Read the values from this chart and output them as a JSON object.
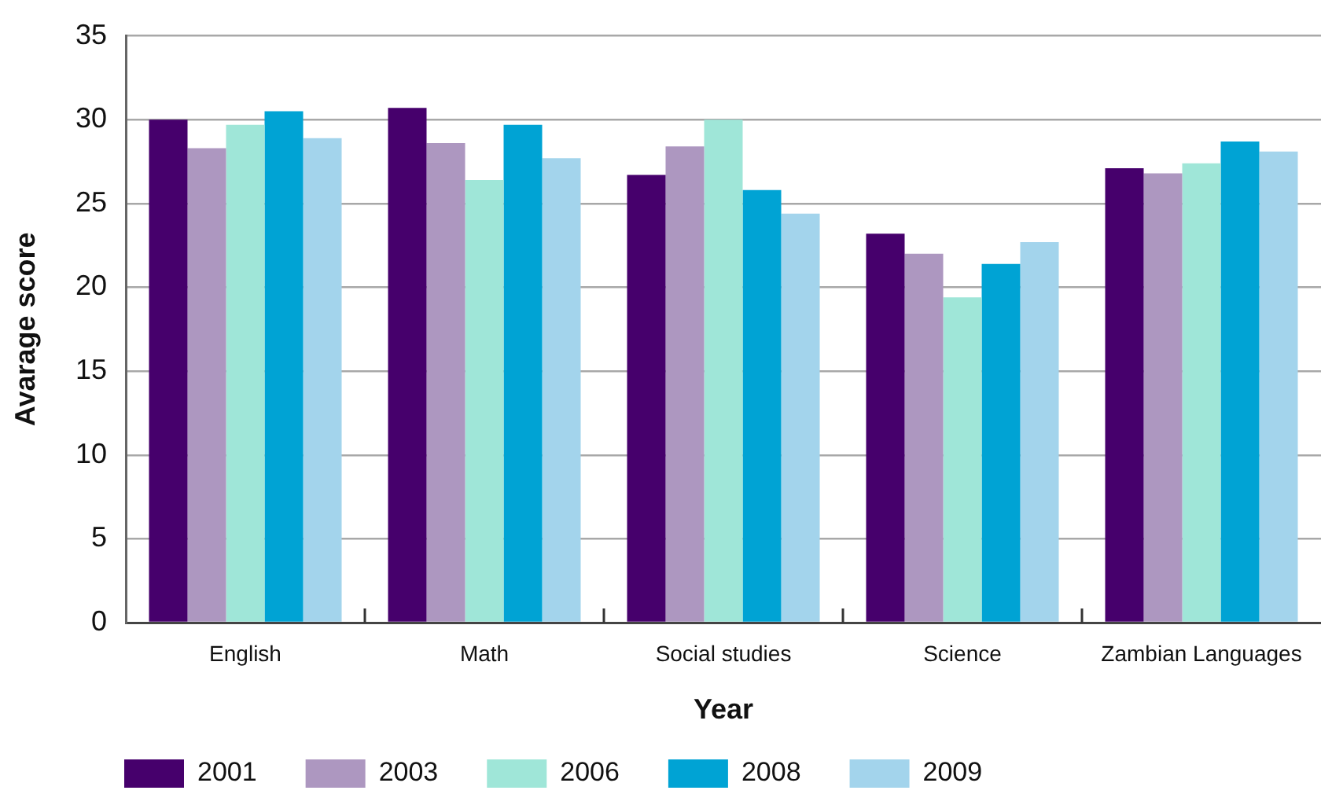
{
  "chart_data": {
    "type": "bar",
    "xlabel": "Year",
    "ylabel": "Avarage score",
    "categories": [
      "English",
      "Math",
      "Social studies",
      "Science",
      "Zambian Languages"
    ],
    "series": [
      {
        "name": "2001",
        "color": "#46006c",
        "values": [
          30.0,
          30.7,
          26.7,
          23.2,
          27.1
        ]
      },
      {
        "name": "2003",
        "color": "#ad97c0",
        "values": [
          28.3,
          28.6,
          28.4,
          22.0,
          26.8
        ]
      },
      {
        "name": "2006",
        "color": "#9fe6d8",
        "values": [
          29.7,
          26.4,
          30.0,
          19.4,
          27.4
        ]
      },
      {
        "name": "2008",
        "color": "#00a3d4",
        "values": [
          30.5,
          29.7,
          25.8,
          21.4,
          28.7
        ]
      },
      {
        "name": "2009",
        "color": "#a3d4ec",
        "values": [
          28.9,
          27.7,
          24.4,
          22.7,
          28.1
        ]
      }
    ],
    "ylim": [
      0,
      35
    ],
    "yticks": [
      0,
      5,
      10,
      15,
      20,
      25,
      30,
      35
    ],
    "grid": "y",
    "legend": "bottom left"
  }
}
